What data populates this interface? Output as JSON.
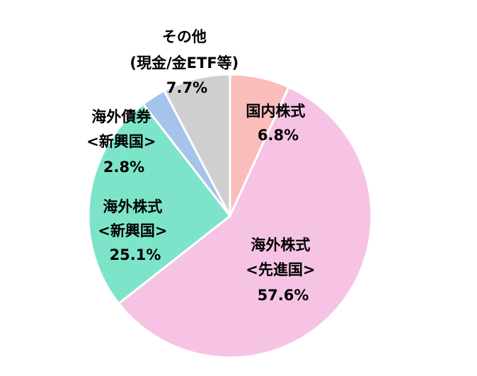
{
  "chart_data": {
    "type": "pie",
    "title": "",
    "start_angle_deg": 0,
    "direction": "clockwise",
    "slices": [
      {
        "label_lines": [
          "国内株式"
        ],
        "value": 6.8,
        "value_text": "6.8%",
        "color": "#fbbcbc"
      },
      {
        "label_lines": [
          "海外株式",
          "<先進国>"
        ],
        "value": 57.6,
        "value_text": "57.6%",
        "color": "#f6c3e5"
      },
      {
        "label_lines": [
          "海外株式",
          "<新興国>"
        ],
        "value": 25.1,
        "value_text": "25.1%",
        "color": "#7de4c9"
      },
      {
        "label_lines": [
          "海外債券",
          "<新興国>"
        ],
        "value": 2.8,
        "value_text": "2.8%",
        "color": "#a6c3eb"
      },
      {
        "label_lines": [
          "その他",
          "(現金/金ETF等)"
        ],
        "value": 7.7,
        "value_text": "7.7%",
        "color": "#cfcfcf"
      }
    ]
  }
}
